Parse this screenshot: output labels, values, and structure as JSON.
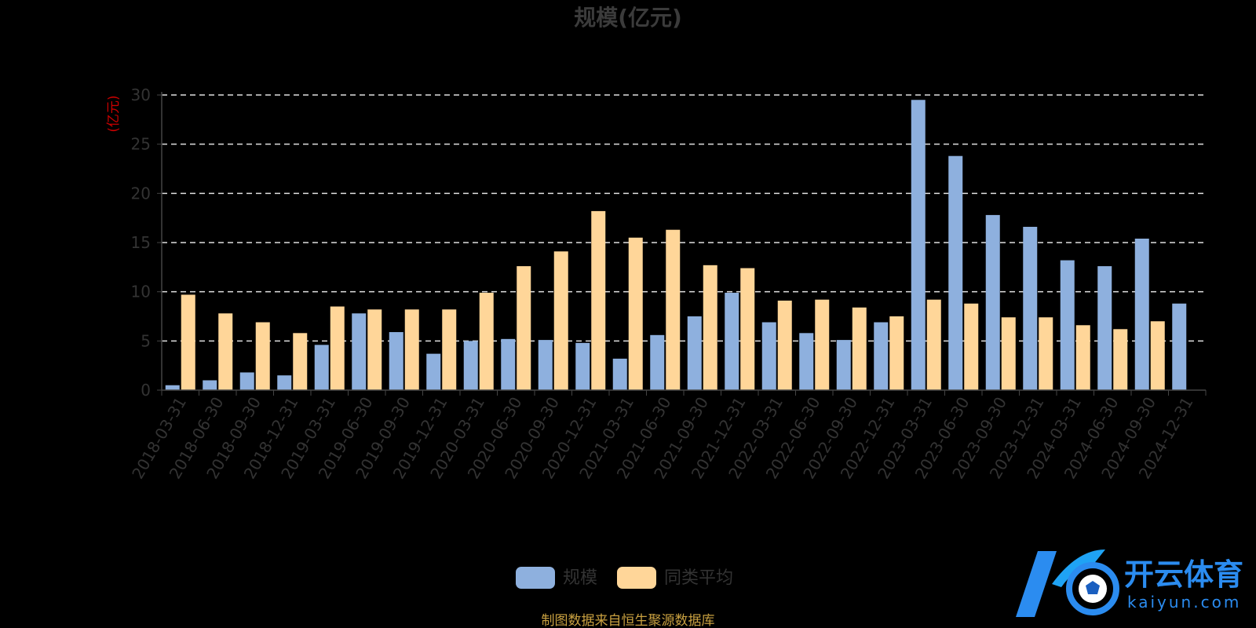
{
  "chart_data": {
    "type": "bar",
    "title": "规模(亿元)",
    "ylabel": "(亿元)",
    "ylim": [
      0,
      30
    ],
    "yticks": [
      "0",
      "5",
      "10",
      "15",
      "20",
      "25",
      "30"
    ],
    "grid": true,
    "legend_position": "bottom-center",
    "categories": [
      "2018-03-31",
      "2018-06-30",
      "2018-09-30",
      "2018-12-31",
      "2019-03-31",
      "2019-06-30",
      "2019-09-30",
      "2019-12-31",
      "2020-03-31",
      "2020-06-30",
      "2020-09-30",
      "2020-12-31",
      "2021-03-31",
      "2021-06-30",
      "2021-09-30",
      "2021-12-31",
      "2022-03-31",
      "2022-06-30",
      "2022-09-30",
      "2022-12-31",
      "2023-03-31",
      "2023-06-30",
      "2023-09-30",
      "2023-12-31",
      "2024-03-31",
      "2024-06-30",
      "2024-09-30",
      "2024-12-31"
    ],
    "series": [
      {
        "name": "规模",
        "color": "#8eb0de",
        "values": [
          0.5,
          1.0,
          1.8,
          1.5,
          4.6,
          7.8,
          5.9,
          3.7,
          5.0,
          5.2,
          5.1,
          4.8,
          3.2,
          5.6,
          7.5,
          9.9,
          6.9,
          5.8,
          5.1,
          6.9,
          29.5,
          23.8,
          17.8,
          16.6,
          13.2,
          12.6,
          15.4,
          8.8
        ]
      },
      {
        "name": "同类平均",
        "color": "#ffd699",
        "values": [
          9.7,
          7.8,
          6.9,
          5.8,
          8.5,
          8.2,
          8.2,
          8.2,
          9.9,
          12.6,
          14.1,
          18.2,
          15.5,
          16.3,
          12.7,
          12.4,
          9.1,
          9.2,
          8.4,
          7.5,
          9.2,
          8.8,
          7.4,
          7.4,
          6.6,
          6.2,
          7.0,
          null
        ]
      }
    ],
    "source_note": "制图数据来自恒生聚源数据库",
    "colors": {
      "background": "#000000",
      "title": "#3b3b3b",
      "axis_text": "#333333",
      "ylabel": "#cc0000",
      "grid": "#e0e0e0",
      "axis_line": "#444444",
      "source": "#c8a040"
    }
  },
  "logo": {
    "cn": "开云体育",
    "en": "kaiyun.com",
    "color": "#2b8cf0"
  }
}
